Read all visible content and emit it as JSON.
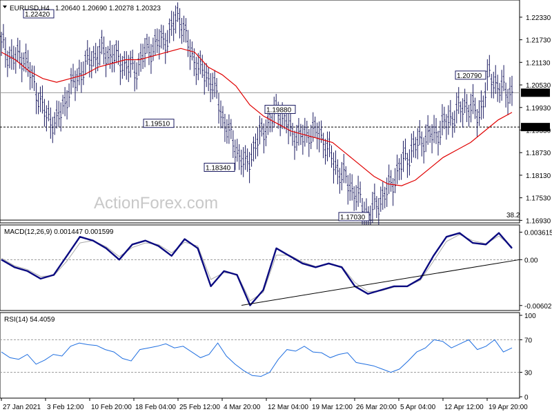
{
  "chart_data": [
    {
      "type": "line",
      "title": "EURUSD,H4",
      "ohlc_text": "1.20640 1.20690 1.20278 1.20323",
      "watermark": "ActionForex.com",
      "ylim": [
        1.169,
        1.2275
      ],
      "y_ticks": [
        "1.22330",
        "1.21730",
        "1.21130",
        "1.20530",
        "1.19930",
        "1.19330",
        "1.18730",
        "1.18130",
        "1.17530",
        "1.16930"
      ],
      "current_price": "1.20323",
      "support_level": "1.19410",
      "fib_label": "38.2",
      "x_dates": [
        "27 Jan 2021",
        "3 Feb 12:00",
        "10 Feb 20:00",
        "18 Feb 04:00",
        "25 Feb 12:00",
        "4 Mar 20:00",
        "12 Mar 04:00",
        "19 Mar 12:00",
        "26 Mar 20:00",
        "5 Apr 04:00",
        "12 Apr 12:00",
        "19 Apr 20:00"
      ],
      "price_series": [
        1.216,
        1.212,
        1.213,
        1.205,
        1.197,
        1.1951,
        1.203,
        1.208,
        1.212,
        1.214,
        1.213,
        1.211,
        1.209,
        1.214,
        1.216,
        1.218,
        1.2242,
        1.214,
        1.209,
        1.206,
        1.196,
        1.189,
        1.1834,
        1.19,
        1.195,
        1.1988,
        1.193,
        1.191,
        1.193,
        1.191,
        1.184,
        1.18,
        1.176,
        1.1703,
        1.174,
        1.178,
        1.184,
        1.188,
        1.191,
        1.192,
        1.195,
        1.198,
        1.2,
        1.197,
        1.2079,
        1.204,
        1.2032
      ],
      "ma_series": [
        1.214,
        1.212,
        1.209,
        1.207,
        1.206,
        1.207,
        1.208,
        1.21,
        1.211,
        1.212,
        1.212,
        1.213,
        1.214,
        1.215,
        1.214,
        1.21,
        1.208,
        1.205,
        1.2,
        1.197,
        1.195,
        1.193,
        1.192,
        1.191,
        1.19,
        1.187,
        1.184,
        1.181,
        1.179,
        1.1785,
        1.18,
        1.183,
        1.186,
        1.188,
        1.19,
        1.193,
        1.196,
        1.198
      ],
      "annotations": [
        {
          "label": "1.22420",
          "value": 1.2242
        },
        {
          "label": "1.19510",
          "value": 1.1951
        },
        {
          "label": "1.18340",
          "value": 1.1834
        },
        {
          "label": "1.19880",
          "value": 1.1988
        },
        {
          "label": "1.17030",
          "value": 1.1703
        },
        {
          "label": "1.20790",
          "value": 1.2079
        }
      ]
    },
    {
      "type": "line",
      "title": "MACD(12,26,9) 0.001447 0.001599",
      "ylim": [
        -0.0065,
        0.0042
      ],
      "y_ticks": [
        "0.003615",
        "0.00",
        "-0.006026"
      ],
      "macd": [
        0.0,
        -0.001,
        -0.0015,
        -0.0025,
        -0.002,
        0.0005,
        0.003,
        0.0025,
        0.0015,
        0.0,
        0.002,
        0.0025,
        0.0018,
        0.0005,
        0.0027,
        0.0015,
        -0.0035,
        -0.0015,
        -0.002,
        -0.006,
        -0.004,
        0.0015,
        0.0005,
        -0.0005,
        -0.001,
        -0.0005,
        -0.001,
        -0.0035,
        -0.0045,
        -0.004,
        -0.0035,
        -0.0035,
        -0.0025,
        0.0005,
        0.003,
        0.0035,
        0.0022,
        0.002,
        0.0035,
        0.0015
      ],
      "signal": [
        0.0002,
        -0.0008,
        -0.0013,
        -0.0022,
        -0.0021,
        -0.0002,
        0.0022,
        0.0025,
        0.0017,
        0.0004,
        0.0016,
        0.0022,
        0.002,
        0.0009,
        0.0023,
        0.0018,
        -0.0026,
        -0.0017,
        -0.0019,
        -0.0054,
        -0.0043,
        0.0006,
        0.0006,
        -0.0003,
        -0.0009,
        -0.0006,
        -0.0009,
        -0.003,
        -0.0042,
        -0.0041,
        -0.0036,
        -0.0035,
        -0.0027,
        -0.0002,
        0.0024,
        0.0033,
        0.0025,
        0.0021,
        0.0031,
        0.0017
      ]
    },
    {
      "type": "line",
      "title": "RSI(14) 54.4059",
      "ylim": [
        0,
        100
      ],
      "y_ticks": [
        "100",
        "70",
        "30",
        "0"
      ],
      "levels": [
        70,
        30
      ],
      "rsi": [
        55,
        48,
        46,
        52,
        40,
        45,
        52,
        50,
        62,
        66,
        64,
        63,
        58,
        55,
        47,
        44,
        58,
        60,
        62,
        65,
        60,
        62,
        55,
        48,
        52,
        66,
        50,
        40,
        32,
        26,
        25,
        30,
        46,
        58,
        56,
        62,
        55,
        54,
        48,
        52,
        54,
        42,
        40,
        38,
        34,
        30,
        34,
        44,
        55,
        60,
        70,
        68,
        60,
        65,
        70,
        58,
        62,
        70,
        55,
        60
      ]
    }
  ]
}
